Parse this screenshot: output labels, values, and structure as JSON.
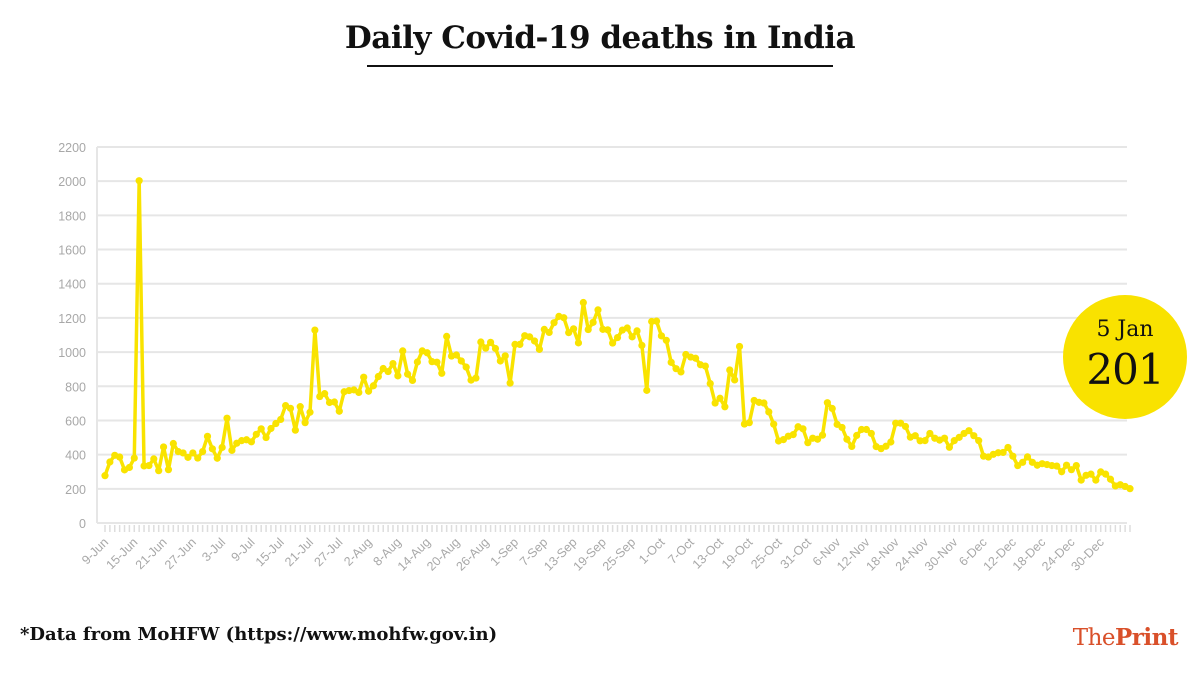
{
  "chart_data": {
    "type": "line",
    "title": "Daily Covid-19 deaths in India",
    "x_range": [
      "9-Jun",
      "5-Jan"
    ],
    "x_interval": "daily",
    "x_tick_labels": [
      "9-Jun",
      "15-Jun",
      "21-Jun",
      "27-Jun",
      "3-Jul",
      "9-Jul",
      "15-Jul",
      "21-Jul",
      "27-Jul",
      "2-Aug",
      "8-Aug",
      "14-Aug",
      "20-Aug",
      "26-Aug",
      "1-Sep",
      "7-Sep",
      "13-Sep",
      "19-Sep",
      "25-Sep",
      "1-Oct",
      "7-Oct",
      "13-Oct",
      "19-Oct",
      "25-Oct",
      "31-Oct",
      "6-Nov",
      "12-Nov",
      "18-Nov",
      "24-Nov",
      "30-Nov",
      "6-Dec",
      "12-Dec",
      "18-Dec",
      "24-Dec",
      "30-Dec"
    ],
    "y_ticks": [
      0,
      200,
      400,
      600,
      800,
      1000,
      1200,
      1400,
      1600,
      1800,
      2000,
      2200
    ],
    "ylim": [
      0,
      2200
    ],
    "grid": "horizontal",
    "line_color": "#f9e300",
    "values": [
      277,
      357,
      396,
      386,
      311,
      325,
      380,
      2003,
      334,
      336,
      375,
      306,
      445,
      312,
      465,
      418,
      410,
      384,
      410,
      380,
      418,
      507,
      434,
      379,
      442,
      613,
      425,
      467,
      482,
      487,
      475,
      519,
      551,
      500,
      553,
      582,
      606,
      687,
      671,
      543,
      681,
      587,
      648,
      1129,
      740,
      757,
      705,
      708,
      654,
      768,
      775,
      779,
      764,
      853,
      771,
      803,
      857,
      904,
      886,
      933,
      861,
      1007,
      871,
      834,
      942,
      1007,
      996,
      944,
      941,
      876,
      1092,
      977,
      983,
      948,
      912,
      836,
      848,
      1059,
      1023,
      1057,
      1021,
      948,
      978,
      819,
      1045,
      1045,
      1096,
      1089,
      1065,
      1016,
      1133,
      1115,
      1172,
      1209,
      1201,
      1114,
      1136,
      1054,
      1290,
      1132,
      1174,
      1247,
      1133,
      1130,
      1053,
      1085,
      1129,
      1141,
      1089,
      1124,
      1039,
      776,
      1179,
      1181,
      1095,
      1069,
      940,
      903,
      884,
      986,
      971,
      964,
      926,
      918,
      816,
      702,
      730,
      680,
      895,
      837,
      1033,
      579,
      587,
      717,
      706,
      702,
      650,
      578,
      480,
      488,
      508,
      517,
      563,
      551,
      470,
      496,
      490,
      514,
      704,
      670,
      577,
      559,
      490,
      448,
      512,
      547,
      547,
      524,
      447,
      435,
      449,
      474,
      584,
      584,
      565,
      502,
      511,
      481,
      482,
      524,
      496,
      485,
      496,
      443,
      482,
      501,
      524,
      540,
      511,
      482,
      391,
      386,
      402,
      411,
      413,
      442,
      391,
      336,
      355,
      387,
      355,
      338,
      347,
      342,
      336,
      333,
      300,
      338,
      312,
      336,
      251,
      279,
      286,
      251,
      299,
      286,
      256,
      217,
      224,
      214,
      201
    ]
  },
  "callout": {
    "date": "5 Jan",
    "value": "201",
    "color": "#f9e200"
  },
  "footer": {
    "source": "*Data from MoHFW (https://www.mohfw.gov.in)"
  },
  "logo": {
    "part1": "The",
    "part2": "Print",
    "color": "#d9502a"
  }
}
